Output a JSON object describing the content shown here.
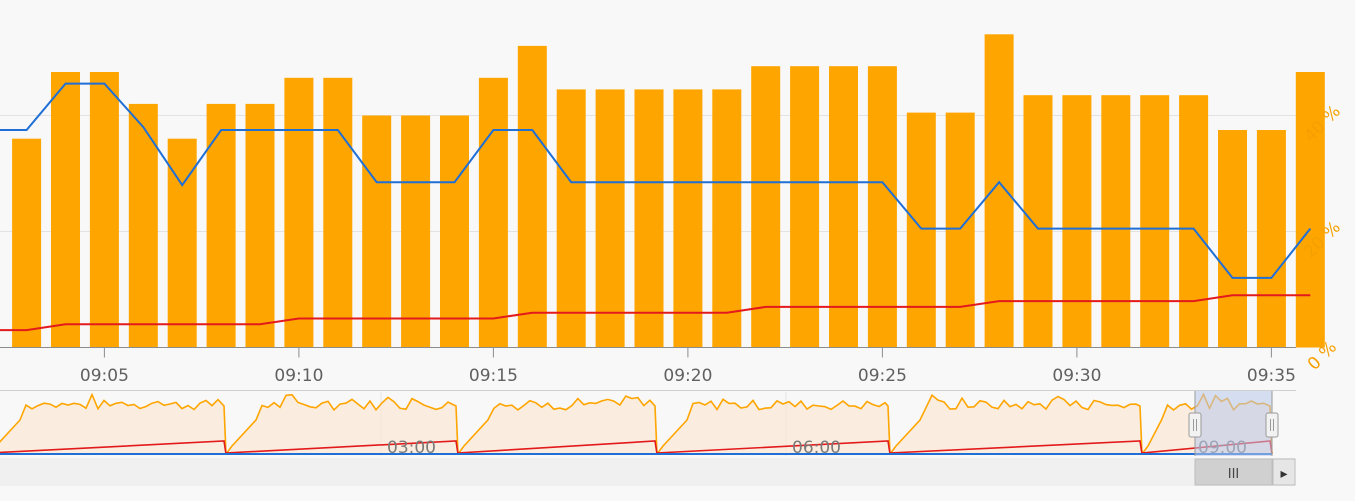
{
  "chart_data": {
    "type": "bar",
    "title": "",
    "xlabel": "",
    "ylabel": "",
    "x_tick_labels": [
      "09:05",
      "09:10",
      "09:15",
      "09:20",
      "09:25",
      "09:30",
      "09:35"
    ],
    "y_tick_labels": [
      "0 %",
      "20 %",
      "40 %"
    ],
    "ylim": [
      0,
      60
    ],
    "grid": true,
    "legend": "none",
    "colors": {
      "bars": "#FFA500",
      "blue_line": "#1F6FD6",
      "red_line": "#E31A1C",
      "axis_labels_right": "#F5A000"
    },
    "categories": [
      "09:04",
      "09:05",
      "09:06",
      "09:07",
      "09:08",
      "09:09",
      "09:10",
      "09:11",
      "09:12",
      "09:13",
      "09:14",
      "09:15",
      "09:16",
      "09:17",
      "09:18",
      "09:19",
      "09:20",
      "09:21",
      "09:22",
      "09:23",
      "09:24",
      "09:25",
      "09:26",
      "09:27",
      "09:28",
      "09:29",
      "09:30",
      "09:31",
      "09:32",
      "09:33",
      "09:34",
      "09:35",
      "09:36"
    ],
    "series": [
      {
        "type": "bar",
        "values": [
          47.5,
          47.5,
          42,
          36,
          42,
          42,
          46.5,
          46.5,
          40,
          40,
          40,
          46.5,
          52,
          44.5,
          44.5,
          44.5,
          44.5,
          44.5,
          48.5,
          48.5,
          48.5,
          48.5,
          40.5,
          40.5,
          54,
          43.5,
          43.5,
          43.5,
          43.5,
          43.5,
          37.5,
          37.5,
          47.5
        ]
      },
      {
        "type": "line",
        "values": [
          45.5,
          45.5,
          38,
          28,
          37.5,
          37.5,
          37.5,
          37.5,
          28.5,
          28.5,
          28.5,
          37.5,
          37.5,
          28.5,
          28.5,
          28.5,
          28.5,
          28.5,
          28.5,
          28.5,
          28.5,
          28.5,
          20.5,
          20.5,
          28.5,
          20.5,
          20.5,
          20.5,
          20.5,
          20.5,
          12,
          12,
          20.5
        ]
      },
      {
        "type": "line",
        "values": [
          4,
          4,
          4,
          4,
          4,
          4,
          5,
          5,
          5,
          5,
          5,
          5,
          6,
          6,
          6,
          6,
          6,
          6,
          7,
          7,
          7,
          7,
          7,
          7,
          8,
          8,
          8,
          8,
          8,
          8,
          9,
          9,
          9
        ]
      }
    ],
    "leading_partial": {
      "bar": 36,
      "blue": 37.5,
      "red": 3
    },
    "navigator": {
      "labels": [
        "03:00",
        "06:00",
        "09:00"
      ],
      "selected_range": [
        "09:03",
        "09:36"
      ],
      "scroll_thumb_label": "III",
      "scroll_arrow": "▸"
    }
  }
}
